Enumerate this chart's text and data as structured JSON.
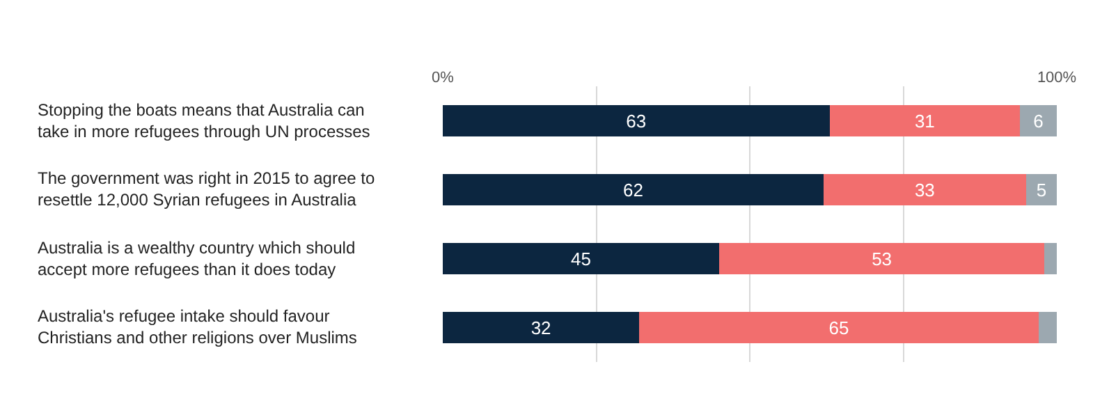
{
  "chart_data": {
    "type": "bar",
    "orientation": "horizontal",
    "stacked": true,
    "categories": [
      "Stopping the boats means that Australia can take in more refugees through UN processes",
      "The government was right in 2015 to agree to resettle 12,000 Syrian refugees in Australia",
      "Australia is a wealthy country which should accept more refugees than it does today",
      "Australia's refugee intake should favour Christians and other religions over Muslims"
    ],
    "series": [
      {
        "color": "#0c2640",
        "values": [
          63,
          62,
          45,
          32
        ],
        "value_labels": [
          "63",
          "62",
          "45",
          "32"
        ]
      },
      {
        "color": "#f26e6e",
        "values": [
          31,
          33,
          53,
          65
        ],
        "value_labels": [
          "31",
          "33",
          "53",
          "65"
        ]
      },
      {
        "color": "#9ca8b0",
        "values": [
          6,
          5,
          2,
          3
        ],
        "value_labels": [
          "6",
          "5",
          null,
          null
        ]
      }
    ],
    "xlim": [
      0,
      100
    ],
    "xticks": [
      {
        "value": 0,
        "label": "0%"
      },
      {
        "value": 25,
        "label": null
      },
      {
        "value": 50,
        "label": null
      },
      {
        "value": 75,
        "label": null
      },
      {
        "value": 100,
        "label": "100%"
      }
    ],
    "grid": "x"
  }
}
